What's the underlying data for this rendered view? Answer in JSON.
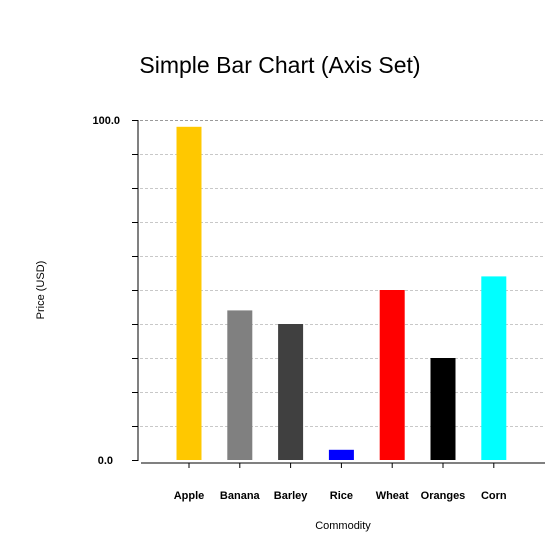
{
  "chart_data": {
    "type": "bar",
    "title": "Simple Bar Chart (Axis Set)",
    "xlabel": "Commodity",
    "ylabel": "Price (USD)",
    "ylim": [
      0,
      100
    ],
    "y_tick_labels": [
      "0.0",
      "100.0"
    ],
    "grid": true,
    "categories": [
      "Apple",
      "Banana",
      "Barley",
      "Rice",
      "Wheat",
      "Oranges",
      "Corn"
    ],
    "values": [
      98,
      44,
      40,
      3,
      50,
      30,
      54
    ],
    "colors": [
      "#ffc800",
      "#808080",
      "#404040",
      "#0000ff",
      "#ff0000",
      "#000000",
      "#00ffff"
    ]
  }
}
